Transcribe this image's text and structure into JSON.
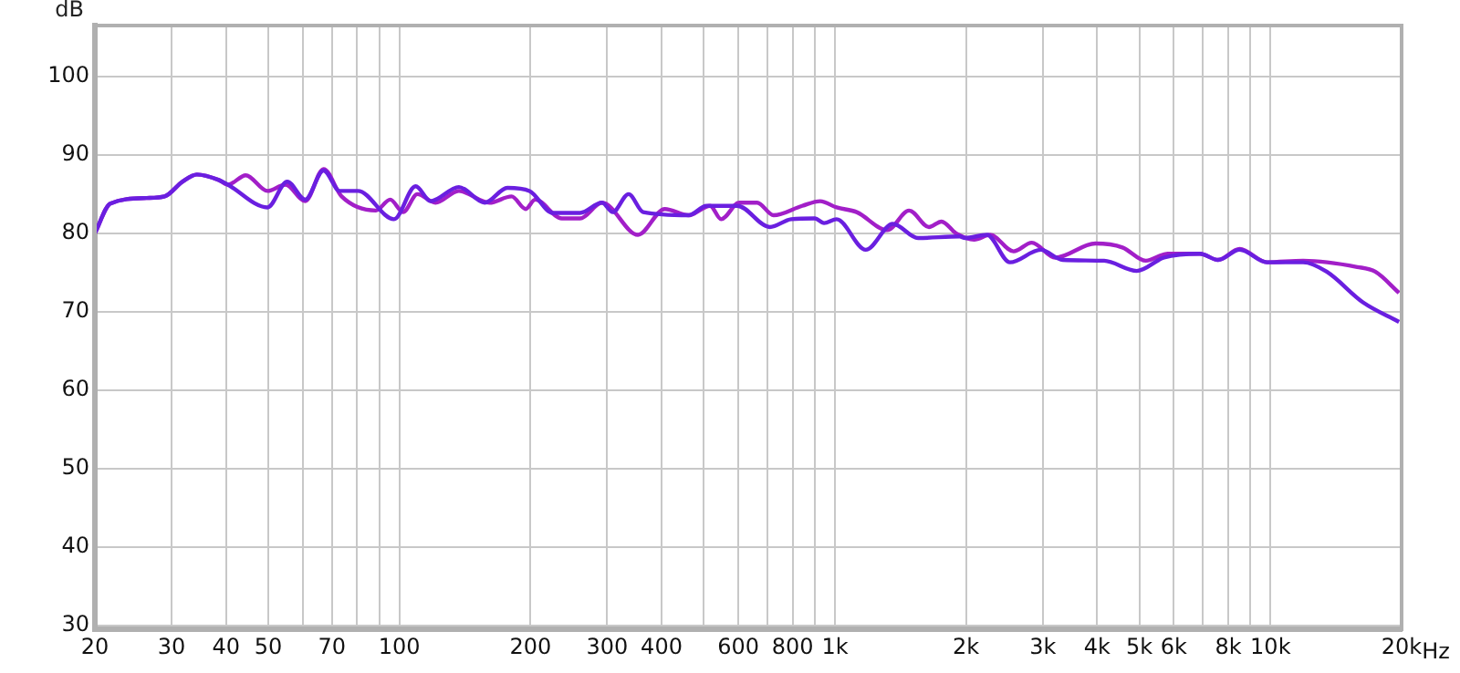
{
  "chart_data": {
    "type": "line",
    "ylabel": "dB",
    "log": "x",
    "grid": true,
    "legend": false,
    "marker": "none",
    "line_style": "solid",
    "xlim": [
      20,
      20000
    ],
    "ylim": [
      29.5,
      106.5
    ],
    "xticks": [
      20,
      30,
      40,
      50,
      {
        "value": 60,
        "label": null
      },
      70,
      {
        "value": 80,
        "label": null
      },
      {
        "value": 90,
        "label": null
      },
      100,
      200,
      300,
      400,
      {
        "value": 500,
        "label": null
      },
      600,
      {
        "value": 700,
        "label": null
      },
      800,
      {
        "value": 900,
        "label": null
      },
      {
        "value": 1000,
        "label": "1k"
      },
      {
        "value": 2000,
        "label": "2k"
      },
      {
        "value": 3000,
        "label": "3k"
      },
      {
        "value": 4000,
        "label": "4k"
      },
      {
        "value": 5000,
        "label": "5k"
      },
      {
        "value": 6000,
        "label": "6k"
      },
      {
        "value": 7000,
        "label": null
      },
      {
        "value": 8000,
        "label": "8k"
      },
      {
        "value": 9000,
        "label": null
      },
      {
        "value": 10000,
        "label": "10k"
      },
      {
        "value": 20000,
        "label": "20k"
      }
    ],
    "xlabel": "Hz",
    "yticks": [
      30,
      40,
      50,
      60,
      70,
      80,
      90,
      100
    ],
    "series": [
      {
        "color": "#6a1fe0",
        "x": [
          20,
          21.7,
          26.3,
          28.9,
          31.8,
          34.3,
          38.5,
          40.4,
          49.8,
          55.3,
          60.8,
          67,
          73,
          80.3,
          97.2,
          109,
          118,
          137,
          157,
          177,
          199,
          225,
          260,
          292,
          309,
          336,
          363,
          461,
          507,
          597,
          709,
          794,
          899,
          944,
          1009,
          1177,
          1358,
          1552,
          1933,
          1990,
          2233,
          2523,
          2968,
          3334,
          4150,
          4932,
          5694,
          6889,
          7580,
          8496,
          9817,
          11885,
          13460,
          16300,
          19730
        ],
        "values": [
          80.0,
          83.8,
          84.5,
          84.7,
          86.6,
          87.5,
          86.8,
          86.2,
          83.3,
          86.6,
          84.3,
          88.0,
          85.4,
          85.4,
          81.8,
          86.0,
          84.1,
          85.9,
          83.9,
          85.8,
          85.4,
          82.6,
          82.6,
          83.9,
          82.7,
          85.0,
          82.7,
          82.3,
          83.5,
          83.5,
          80.8,
          81.8,
          81.9,
          81.3,
          81.8,
          77.9,
          81.2,
          79.4,
          79.6,
          79.4,
          79.8,
          76.3,
          77.9,
          76.6,
          76.5,
          75.2,
          76.9,
          77.4,
          76.6,
          77.9,
          76.3,
          76.3,
          75.1,
          71.2,
          68.7
        ]
      },
      {
        "color": "#a21fc8",
        "x": [
          20,
          21.7,
          26.3,
          28.9,
          31.8,
          34.3,
          38.5,
          40.4,
          44.4,
          49.8,
          54.8,
          60.8,
          67,
          73.7,
          88.3,
          95.3,
          102,
          110,
          121,
          137,
          161,
          181,
          195,
          205,
          236,
          260,
          292,
          353,
          407,
          461,
          517,
          548,
          603,
          663,
          723,
          841,
          925,
          1009,
          1122,
          1319,
          1480,
          1644,
          1757,
          1897,
          2088,
          2272,
          2572,
          2831,
          3206,
          3962,
          4571,
          5176,
          5800,
          6889,
          7580,
          8496,
          9817,
          11885,
          15820,
          17400,
          19730
        ],
        "values": [
          80.0,
          83.8,
          84.5,
          84.7,
          86.6,
          87.5,
          86.8,
          86.2,
          87.4,
          85.4,
          86.2,
          84.1,
          88.2,
          84.7,
          82.9,
          84.3,
          82.7,
          85.0,
          83.9,
          85.4,
          83.9,
          84.7,
          83.1,
          84.3,
          81.9,
          81.9,
          83.9,
          79.8,
          83.1,
          82.3,
          83.5,
          81.8,
          83.9,
          83.9,
          82.3,
          83.5,
          84.1,
          83.3,
          82.7,
          80.4,
          82.9,
          80.8,
          81.5,
          80.0,
          79.2,
          79.8,
          77.7,
          78.8,
          76.9,
          78.7,
          78.2,
          76.5,
          77.4,
          77.4,
          76.6,
          78.0,
          76.3,
          76.5,
          75.7,
          75.1,
          72.4
        ]
      }
    ]
  }
}
